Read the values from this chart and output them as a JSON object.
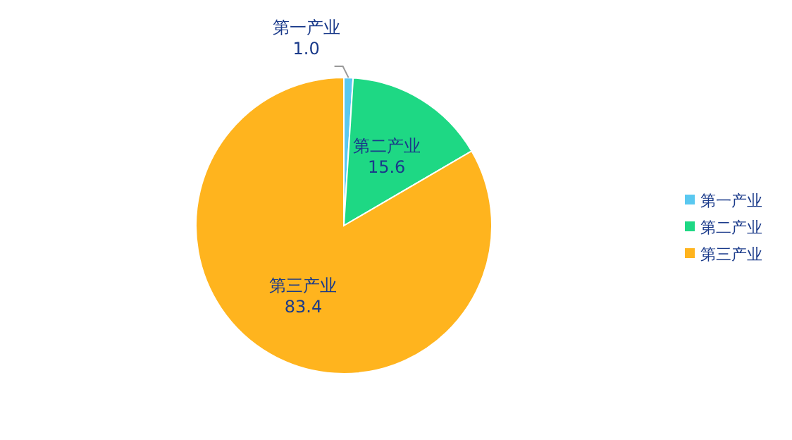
{
  "chart_data": {
    "type": "pie",
    "categories": [
      "第一产业",
      "第二产业",
      "第三产业"
    ],
    "values": [
      1.0,
      15.6,
      83.4
    ],
    "value_labels": [
      "1.0",
      "15.6",
      "83.4"
    ],
    "colors": [
      "#5ac8f0",
      "#1ed884",
      "#ffb41e"
    ],
    "legend": "right"
  }
}
